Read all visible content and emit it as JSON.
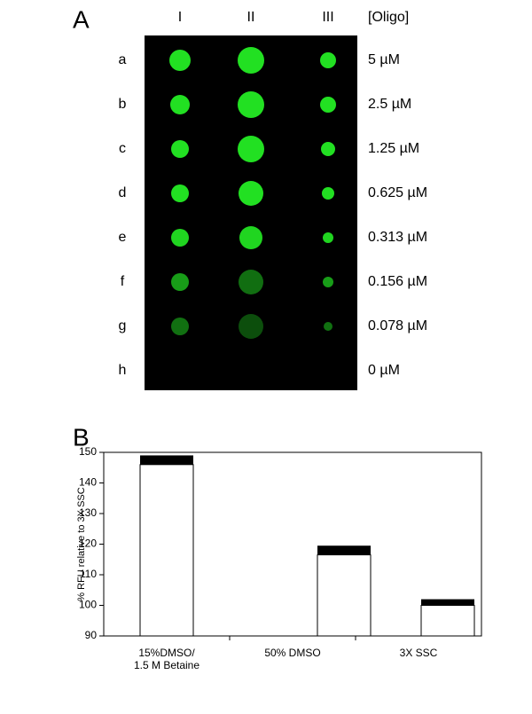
{
  "panel_a": {
    "label": "A",
    "header": "[Oligo]",
    "columns": [
      "I",
      "II",
      "III"
    ],
    "rows": [
      "a",
      "b",
      "c",
      "d",
      "e",
      "f",
      "g",
      "h"
    ],
    "concentrations": [
      "5 µM",
      "2.5 µM",
      "1.25 µM",
      "0.625 µM",
      "0.313 µM",
      "0.156 µM",
      "0.078 µM",
      "0 µM"
    ]
  },
  "panel_b": {
    "label": "B"
  },
  "chart_data": {
    "type": "bar",
    "ylabel": "% RFU relative to 3X SSC",
    "categories": [
      "15%DMSO/\n1.5 M Betaine",
      "50% DMSO",
      "3X SSC"
    ],
    "values": [
      146,
      116.5,
      100
    ],
    "errors": [
      3,
      3,
      2
    ],
    "color": "#ffffff",
    "error_color": "#000000",
    "ylim": [
      90,
      150
    ],
    "yticks": [
      90,
      100,
      110,
      120,
      130,
      140,
      150
    ]
  }
}
